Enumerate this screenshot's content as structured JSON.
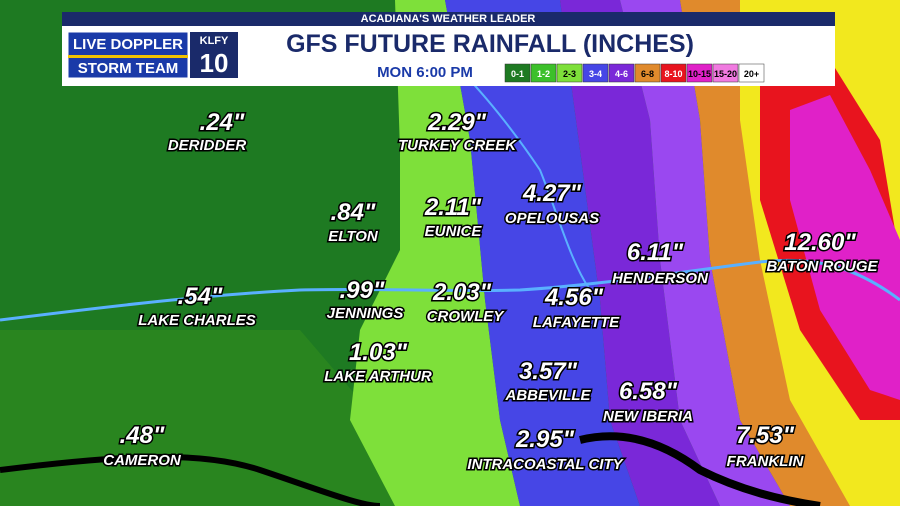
{
  "header": {
    "tagline": "ACADIANA'S WEATHER LEADER",
    "logo_line1": "LIVE DOPPLER",
    "logo_line2": "STORM TEAM",
    "station": "KLFY",
    "channel": "10",
    "title": "GFS FUTURE RAINFALL (INCHES)",
    "time": "MON  6:00 PM"
  },
  "legend": [
    {
      "label": "0-1",
      "color": "#1e7a22"
    },
    {
      "label": "1-2",
      "color": "#3cc02a"
    },
    {
      "label": "2-3",
      "color": "#7ee03a"
    },
    {
      "label": "3-4",
      "color": "#4646e6"
    },
    {
      "label": "4-6",
      "color": "#7a28d8"
    },
    {
      "label": "6-8",
      "color": "#e08a2c"
    },
    {
      "label": "8-10",
      "color": "#e8141e"
    },
    {
      "label": "10-15",
      "color": "#e021c8"
    },
    {
      "label": "15-20",
      "color": "#f07ae0"
    },
    {
      "label": "20+",
      "color": "#ffffff"
    }
  ],
  "cities": [
    {
      "amount": ".24\"",
      "name": "DERIDDER"
    },
    {
      "amount": "2.29\"",
      "name": "TURKEY CREEK"
    },
    {
      "amount": ".84\"",
      "name": "ELTON"
    },
    {
      "amount": "2.11\"",
      "name": "EUNICE"
    },
    {
      "amount": "4.27\"",
      "name": "OPELOUSAS"
    },
    {
      "amount": "6.11\"",
      "name": "HENDERSON"
    },
    {
      "amount": "12.60\"",
      "name": "BATON ROUGE"
    },
    {
      "amount": ".54\"",
      "name": "LAKE CHARLES"
    },
    {
      "amount": ".99\"",
      "name": "JENNINGS"
    },
    {
      "amount": "2.03\"",
      "name": "CROWLEY"
    },
    {
      "amount": "4.56\"",
      "name": "LAFAYETTE"
    },
    {
      "amount": "1.03\"",
      "name": "LAKE ARTHUR"
    },
    {
      "amount": "3.57\"",
      "name": "ABBEVILLE"
    },
    {
      "amount": "6.58\"",
      "name": "NEW IBERIA"
    },
    {
      "amount": ".48\"",
      "name": "CAMERON"
    },
    {
      "amount": "2.95\"",
      "name": "INTRACOASTAL CITY"
    },
    {
      "amount": "7.53\"",
      "name": "FRANKLIN"
    }
  ]
}
